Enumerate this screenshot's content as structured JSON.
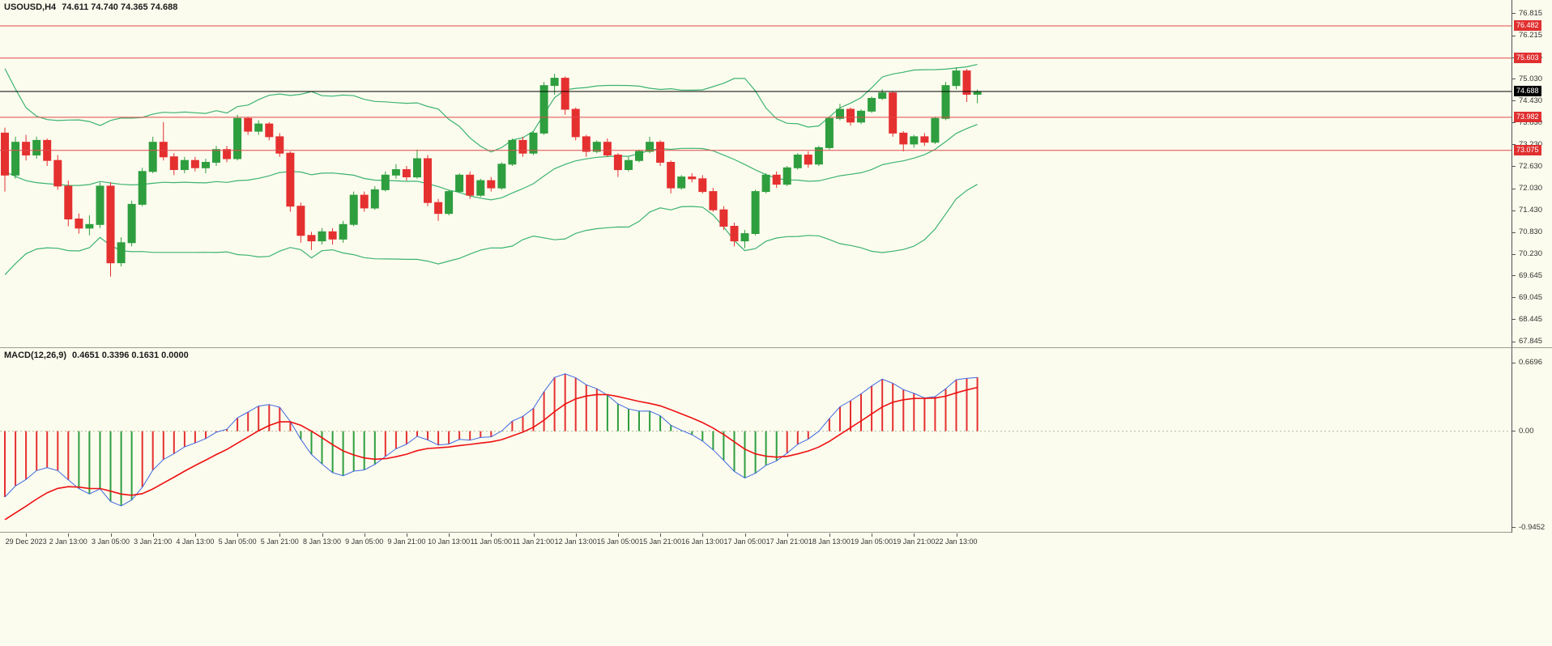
{
  "header": {
    "symbol": "USOUSD,H4",
    "ohlc": "74.611 74.740 74.365 74.688"
  },
  "macd_header": {
    "name": "MACD(12,26,9)",
    "values": "0.4651 0.3396 0.1631 0.0000"
  },
  "colors": {
    "background": "#fcfcee",
    "bull": "#2e9e3f",
    "bear": "#e53030",
    "band": "#3cb371",
    "hline": "#e04848",
    "price_line": "#000000",
    "macd_line": "#4169e1",
    "signal_line": "#ee1111",
    "badge_red": "#e03030",
    "badge_black": "#000000"
  },
  "chart_data": [
    {
      "type": "candlestick",
      "title": "USOUSD H4 price chart with Bollinger Bands",
      "symbol": "USOUSD",
      "timeframe": "H4",
      "ylim": [
        67.69,
        77.19
      ],
      "y_axis_ticks": [
        "76.815",
        "76.215",
        "75.615",
        "75.030",
        "74.430",
        "73.830",
        "73.230",
        "72.630",
        "72.030",
        "71.430",
        "70.830",
        "70.230",
        "69.645",
        "69.045",
        "68.445",
        "67.845"
      ],
      "x_axis_labels": [
        "29 Dec 2023",
        "2 Jan 13:00",
        "3 Jan 05:00",
        "3 Jan 21:00",
        "4 Jan 13:00",
        "5 Jan 05:00",
        "5 Jan 21:00",
        "8 Jan 13:00",
        "9 Jan 05:00",
        "9 Jan 21:00",
        "10 Jan 13:00",
        "11 Jan 05:00",
        "11 Jan 21:00",
        "12 Jan 13:00",
        "15 Jan 05:00",
        "15 Jan 21:00",
        "16 Jan 13:00",
        "17 Jan 05:00",
        "17 Jan 21:00",
        "18 Jan 13:00",
        "19 Jan 05:00",
        "19 Jan 21:00",
        "22 Jan 13:00"
      ],
      "x_label_start_index": 2,
      "x_label_step": 4,
      "overlays": {
        "bollinger_bands": {
          "period": 20,
          "deviation": 2
        }
      },
      "hlines": [
        {
          "value": 76.482,
          "label": "76.482"
        },
        {
          "value": 75.603,
          "label": "75.603"
        },
        {
          "value": 73.982,
          "label": "73.982"
        },
        {
          "value": 73.075,
          "label": "73.075"
        }
      ],
      "current_price_line": {
        "value": 74.688,
        "label": "74.688"
      },
      "prehistory_closes": [
        76.2,
        76.3,
        76.0,
        76.1,
        75.9,
        76.0,
        75.7,
        75.9,
        75.3,
        74.4,
        73.4,
        72.5,
        71.7,
        71.0,
        70.6,
        70.4,
        70.8,
        71.3,
        71.9,
        72.3,
        72.6,
        72.4,
        72.7,
        72.6,
        72.8,
        72.9
      ],
      "ohlc": [
        [
          73.55,
          73.7,
          71.95,
          72.4
        ],
        [
          72.4,
          73.45,
          72.3,
          73.3
        ],
        [
          73.3,
          73.5,
          72.8,
          72.95
        ],
        [
          72.95,
          73.45,
          72.85,
          73.35
        ],
        [
          73.35,
          73.4,
          72.65,
          72.8
        ],
        [
          72.8,
          72.95,
          72.0,
          72.1
        ],
        [
          72.1,
          72.25,
          71.0,
          71.2
        ],
        [
          71.2,
          71.35,
          70.8,
          70.95
        ],
        [
          70.95,
          71.3,
          70.75,
          71.05
        ],
        [
          71.05,
          72.2,
          70.95,
          72.1
        ],
        [
          72.1,
          72.2,
          69.62,
          70.0
        ],
        [
          70.0,
          70.7,
          69.9,
          70.55
        ],
        [
          70.55,
          71.7,
          70.45,
          71.6
        ],
        [
          71.6,
          72.6,
          71.55,
          72.5
        ],
        [
          72.5,
          73.45,
          72.45,
          73.3
        ],
        [
          73.3,
          73.85,
          72.8,
          72.9
        ],
        [
          72.9,
          73.0,
          72.4,
          72.55
        ],
        [
          72.55,
          72.9,
          72.45,
          72.8
        ],
        [
          72.8,
          72.9,
          72.5,
          72.6
        ],
        [
          72.6,
          72.85,
          72.45,
          72.75
        ],
        [
          72.75,
          73.2,
          72.65,
          73.1
        ],
        [
          73.1,
          73.2,
          72.75,
          72.85
        ],
        [
          72.85,
          74.05,
          72.8,
          73.95
        ],
        [
          73.95,
          74.0,
          73.5,
          73.6
        ],
        [
          73.6,
          73.9,
          73.5,
          73.8
        ],
        [
          73.8,
          73.85,
          73.35,
          73.45
        ],
        [
          73.45,
          73.55,
          72.9,
          73.0
        ],
        [
          73.0,
          73.05,
          71.4,
          71.55
        ],
        [
          71.55,
          71.65,
          70.55,
          70.75
        ],
        [
          70.75,
          70.85,
          70.35,
          70.6
        ],
        [
          70.6,
          70.95,
          70.5,
          70.85
        ],
        [
          70.85,
          70.95,
          70.5,
          70.65
        ],
        [
          70.65,
          71.15,
          70.55,
          71.05
        ],
        [
          71.05,
          71.95,
          71.0,
          71.85
        ],
        [
          71.85,
          71.95,
          71.4,
          71.5
        ],
        [
          71.5,
          72.1,
          71.45,
          72.0
        ],
        [
          72.0,
          72.5,
          71.95,
          72.4
        ],
        [
          72.4,
          72.7,
          72.3,
          72.55
        ],
        [
          72.55,
          72.65,
          72.25,
          72.35
        ],
        [
          72.35,
          73.1,
          72.3,
          72.85
        ],
        [
          72.85,
          72.95,
          71.55,
          71.65
        ],
        [
          71.65,
          71.75,
          71.15,
          71.35
        ],
        [
          71.35,
          72.0,
          71.3,
          71.95
        ],
        [
          71.95,
          72.45,
          71.9,
          72.4
        ],
        [
          72.4,
          72.5,
          71.75,
          71.85
        ],
        [
          71.85,
          72.3,
          71.8,
          72.25
        ],
        [
          72.25,
          72.35,
          71.95,
          72.05
        ],
        [
          72.05,
          72.75,
          72.0,
          72.7
        ],
        [
          72.7,
          73.4,
          72.65,
          73.35
        ],
        [
          73.35,
          73.45,
          72.9,
          73.0
        ],
        [
          73.0,
          73.6,
          72.95,
          73.55
        ],
        [
          73.55,
          74.95,
          73.5,
          74.85
        ],
        [
          74.85,
          75.17,
          74.6,
          75.05
        ],
        [
          75.05,
          75.1,
          74.05,
          74.2
        ],
        [
          74.2,
          74.25,
          73.35,
          73.45
        ],
        [
          73.45,
          73.5,
          72.9,
          73.05
        ],
        [
          73.05,
          73.35,
          73.0,
          73.3
        ],
        [
          73.3,
          73.4,
          72.9,
          72.95
        ],
        [
          72.95,
          73.0,
          72.35,
          72.55
        ],
        [
          72.55,
          72.9,
          72.5,
          72.8
        ],
        [
          72.8,
          73.1,
          72.75,
          73.05
        ],
        [
          73.05,
          73.45,
          73.0,
          73.3
        ],
        [
          73.3,
          73.35,
          72.65,
          72.75
        ],
        [
          72.75,
          72.8,
          71.9,
          72.05
        ],
        [
          72.05,
          72.4,
          72.0,
          72.35
        ],
        [
          72.35,
          72.45,
          72.2,
          72.3
        ],
        [
          72.3,
          72.4,
          71.9,
          71.95
        ],
        [
          71.95,
          72.05,
          71.4,
          71.45
        ],
        [
          71.45,
          71.55,
          70.9,
          71.0
        ],
        [
          71.0,
          71.1,
          70.45,
          70.6
        ],
        [
          70.6,
          70.9,
          70.4,
          70.8
        ],
        [
          70.8,
          72.0,
          70.75,
          71.95
        ],
        [
          71.95,
          72.45,
          71.9,
          72.4
        ],
        [
          72.4,
          72.5,
          72.05,
          72.15
        ],
        [
          72.15,
          72.65,
          72.1,
          72.6
        ],
        [
          72.6,
          73.0,
          72.55,
          72.95
        ],
        [
          72.95,
          73.05,
          72.6,
          72.7
        ],
        [
          72.7,
          73.2,
          72.65,
          73.15
        ],
        [
          73.15,
          74.0,
          73.1,
          73.95
        ],
        [
          73.95,
          74.35,
          73.9,
          74.2
        ],
        [
          74.2,
          74.25,
          73.75,
          73.85
        ],
        [
          73.85,
          74.2,
          73.8,
          74.15
        ],
        [
          74.15,
          74.55,
          74.1,
          74.5
        ],
        [
          74.5,
          74.75,
          74.45,
          74.65
        ],
        [
          74.65,
          74.7,
          73.45,
          73.55
        ],
        [
          73.55,
          73.6,
          73.05,
          73.25
        ],
        [
          73.25,
          73.5,
          73.15,
          73.45
        ],
        [
          73.45,
          73.55,
          73.2,
          73.3
        ],
        [
          73.3,
          74.0,
          73.25,
          73.95
        ],
        [
          73.95,
          74.95,
          73.9,
          74.85
        ],
        [
          74.85,
          75.35,
          74.75,
          75.25
        ],
        [
          75.25,
          75.3,
          74.4,
          74.61
        ],
        [
          74.611,
          74.74,
          74.365,
          74.688
        ]
      ]
    },
    {
      "type": "macd",
      "label": "MACD(12,26,9)",
      "params": {
        "fast": 12,
        "slow": 26,
        "signal": 9
      },
      "current_values": [
        0.4651,
        0.3396,
        0.1631,
        0.0
      ],
      "ylim": [
        -0.985,
        0.8124
      ],
      "y_axis_ticks": [
        "0.6696",
        "0.00",
        "-0.9452"
      ]
    }
  ]
}
